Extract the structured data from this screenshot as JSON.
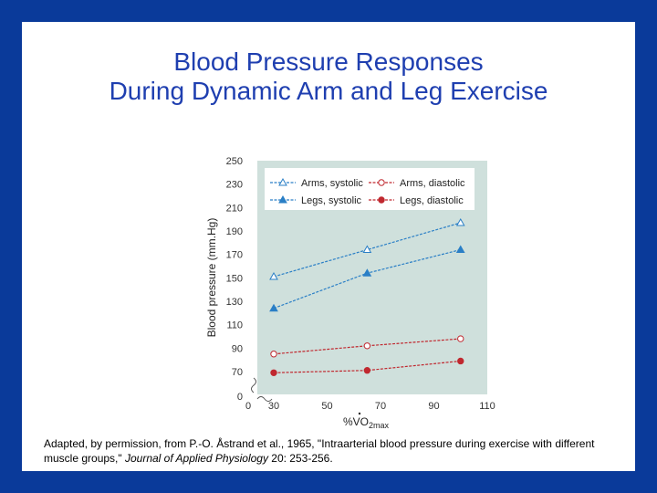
{
  "slide": {
    "title_line1": "Blood Pressure Responses",
    "title_line2": "During Dynamic Arm and Leg Exercise",
    "caption_part1": "Adapted, by permission, from P.-O. Åstrand et al., 1965, \"Intraarterial blood pressure during exercise with different muscle groups,\" ",
    "caption_journal": "Journal of Applied Physiology",
    "caption_part2": " 20: 253-256."
  },
  "colors": {
    "border": "#0a3a9a",
    "title": "#1f3fb0",
    "plot_bg": "#cfe0dc",
    "systolic": "#2a7fc6",
    "diastolic": "#c0282f"
  },
  "chart_data": {
    "type": "line",
    "ylabel": "Blood pressure (mm.Hg)",
    "xlabel_base": "%VO",
    "xlabel_sub": "2max",
    "x_ticks": [
      0,
      30,
      50,
      70,
      90,
      110
    ],
    "y_ticks": [
      0,
      70,
      90,
      110,
      130,
      150,
      170,
      190,
      210,
      230,
      250
    ],
    "x_axis_break": true,
    "y_axis_break": true,
    "xlim": [
      30,
      110
    ],
    "ylim": [
      60,
      250
    ],
    "grid": false,
    "legend_position": "top",
    "series": [
      {
        "name": "Arms, systolic",
        "marker": "triangle-open",
        "color": "#2a7fc6",
        "x": [
          30,
          65,
          100
        ],
        "y": [
          151,
          174,
          197
        ]
      },
      {
        "name": "Arms, diastolic",
        "marker": "circle-open",
        "color": "#c0282f",
        "x": [
          30,
          65,
          100
        ],
        "y": [
          85,
          92,
          98
        ]
      },
      {
        "name": "Legs, systolic",
        "marker": "triangle-filled",
        "color": "#2a7fc6",
        "x": [
          30,
          65,
          100
        ],
        "y": [
          124,
          154,
          174
        ]
      },
      {
        "name": "Legs, diastolic",
        "marker": "circle-filled",
        "color": "#c0282f",
        "x": [
          30,
          65,
          100
        ],
        "y": [
          69,
          71,
          79
        ]
      }
    ]
  }
}
